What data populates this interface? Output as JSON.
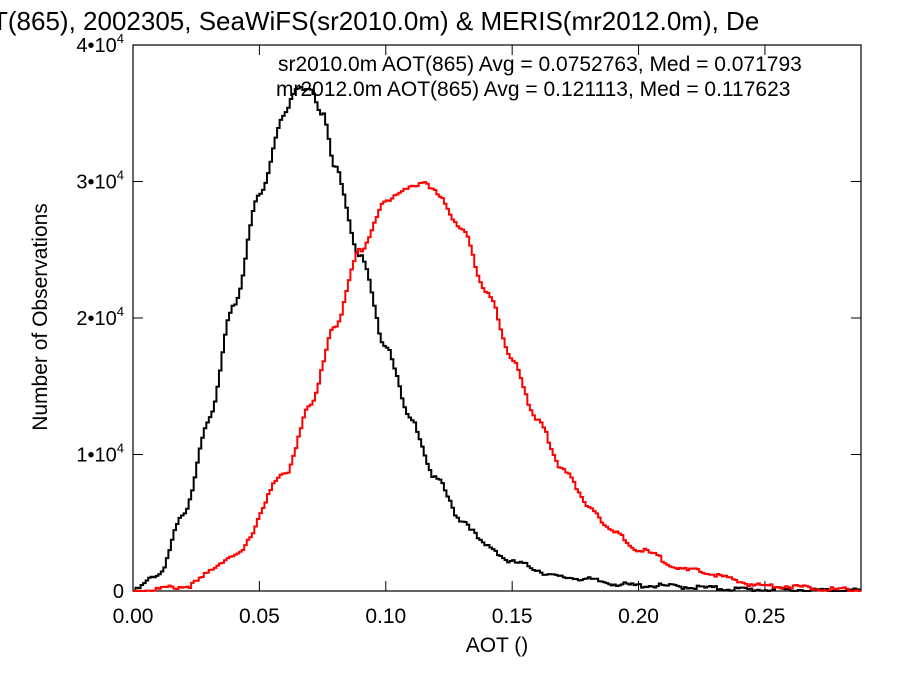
{
  "chart_data": {
    "type": "line",
    "title": "T(865), 2002305, SeaWiFS(sr2010.0m) & MERIS(mr2012.0m), De",
    "xlabel": "AOT ()",
    "ylabel": "Number of Observations",
    "xlim": [
      0.0,
      0.288
    ],
    "ylim": [
      0,
      40000
    ],
    "x_ticks": [
      {
        "value": 0.0,
        "label": "0.00"
      },
      {
        "value": 0.05,
        "label": "0.05"
      },
      {
        "value": 0.1,
        "label": "0.10"
      },
      {
        "value": 0.15,
        "label": "0.15"
      },
      {
        "value": 0.2,
        "label": "0.20"
      },
      {
        "value": 0.25,
        "label": "0.25"
      }
    ],
    "y_ticks": [
      {
        "value": 0,
        "label": "0",
        "exp": ""
      },
      {
        "value": 10000,
        "label": "1•10",
        "exp": "4"
      },
      {
        "value": 20000,
        "label": "2•10",
        "exp": "4"
      },
      {
        "value": 30000,
        "label": "3•10",
        "exp": "4"
      },
      {
        "value": 40000,
        "label": "4•10",
        "exp": "4"
      }
    ],
    "grid": false,
    "legend_position": "top-right",
    "series": [
      {
        "name": "sr2010.0m AOT(865) Avg = 0.0752763, Med = 0.071793",
        "color": "#000000",
        "shape": "skew",
        "x": [
          0.0,
          0.01,
          0.02,
          0.03,
          0.04,
          0.05,
          0.06,
          0.065,
          0.07,
          0.075,
          0.08,
          0.09,
          0.1,
          0.11,
          0.12,
          0.13,
          0.14,
          0.15,
          0.17,
          0.2,
          0.25,
          0.288
        ],
        "y": [
          0,
          1200,
          5500,
          12500,
          21000,
          29000,
          35000,
          36800,
          36900,
          35000,
          31000,
          24500,
          18000,
          12500,
          8200,
          5200,
          3300,
          2100,
          1000,
          400,
          100,
          30
        ]
      },
      {
        "name": "mr2012.0m AOT(865) Avg = 0.121113, Med = 0.117623",
        "color": "#ff0000",
        "shape": "skew",
        "x": [
          0.0,
          0.02,
          0.04,
          0.06,
          0.07,
          0.08,
          0.09,
          0.1,
          0.11,
          0.115,
          0.12,
          0.13,
          0.14,
          0.15,
          0.16,
          0.17,
          0.18,
          0.19,
          0.2,
          0.22,
          0.25,
          0.288
        ],
        "y": [
          0,
          300,
          2500,
          8500,
          13500,
          19500,
          25000,
          28500,
          29700,
          29800,
          29200,
          26500,
          22000,
          17000,
          12500,
          9000,
          6300,
          4300,
          3000,
          1500,
          400,
          60
        ]
      }
    ]
  }
}
